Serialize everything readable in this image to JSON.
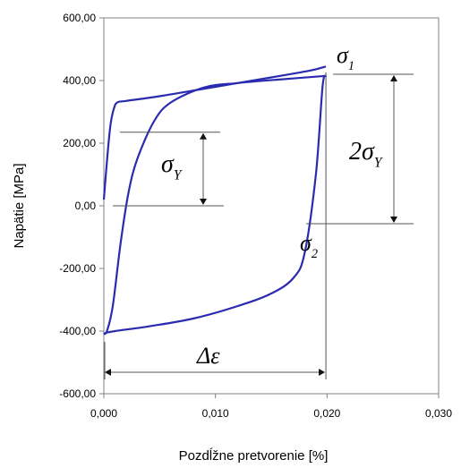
{
  "chart_data": {
    "type": "line",
    "title": "",
    "xlabel": "Pozdĺžne pretvorenie [%]",
    "ylabel": "Napätie  [MPa]",
    "xlim": [
      0,
      0.03
    ],
    "ylim": [
      -600,
      600
    ],
    "x_ticks": [
      0,
      0.01,
      0.02,
      0.03
    ],
    "x_tick_labels": [
      "0,000",
      "0,010",
      "0,020",
      "0,030"
    ],
    "y_ticks": [
      600,
      400,
      200,
      0,
      -200,
      -400,
      -600
    ],
    "y_tick_labels": [
      "600,00",
      "400,00",
      "200,00",
      "0,00",
      "-200,00",
      "-400,00",
      "-600,00"
    ],
    "grid": false,
    "color": "#2b2bb0",
    "series": [
      {
        "x": [
          0,
          0.0003,
          0.0006,
          0.0009,
          0.0012,
          0.002,
          0.005,
          0.01,
          0.015,
          0.0185,
          0.0199
        ],
        "y": [
          20,
          150,
          260,
          310,
          330,
          335,
          350,
          380,
          410,
          432,
          445
        ]
      },
      {
        "x": [
          0.0199,
          0.0196,
          0.019,
          0.018,
          0.017,
          0.015,
          0.012,
          0.008,
          0.004,
          0.001,
          0.0002,
          0
        ],
        "y": [
          415,
          380,
          100,
          -150,
          -230,
          -280,
          -320,
          -360,
          -385,
          -400,
          -405,
          -410
        ]
      },
      {
        "x": [
          0,
          0.0003,
          0.0008,
          0.0015,
          0.0022,
          0.003,
          0.0045,
          0.006,
          0.009,
          0.012,
          0.016,
          0.0199
        ],
        "y": [
          -410,
          -398,
          -320,
          -120,
          40,
          150,
          270,
          330,
          378,
          392,
          404,
          415
        ]
      }
    ],
    "annotations": {
      "sigma1": {
        "symbol": "σ",
        "sub": "1",
        "y": 445
      },
      "sigma2": {
        "symbol": "σ",
        "sub": "2",
        "y": -57
      },
      "sigmaY": {
        "symbol": "σ",
        "sub": "Y",
        "y_top": 235,
        "y_bottom": 0
      },
      "twoSigmaY": {
        "symbol": "2σ",
        "sub": "Y",
        "y_top": 420,
        "y_bottom": -57
      },
      "deltaEps": {
        "symbol": "Δε",
        "x_from": 0,
        "x_to": 0.0199
      }
    }
  }
}
